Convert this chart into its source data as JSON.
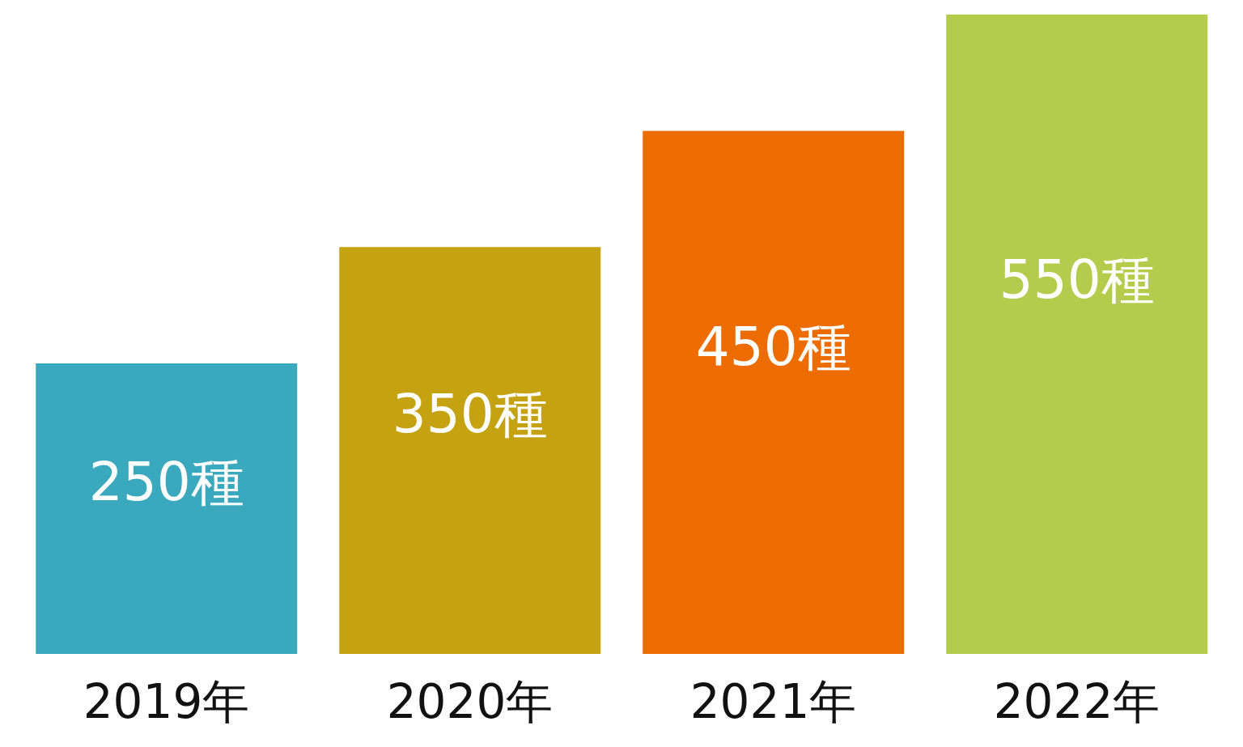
{
  "chart_data": {
    "type": "bar",
    "categories": [
      "2019年",
      "2020年",
      "2021年",
      "2022年"
    ],
    "values": [
      250,
      350,
      450,
      550
    ],
    "colors": [
      "#3aa9be",
      "#c4a212",
      "#ec6c00",
      "#b5cb4b"
    ],
    "value_labels": [
      "250種",
      "350種",
      "450種",
      "550種"
    ],
    "tick_labels": "x"
  }
}
